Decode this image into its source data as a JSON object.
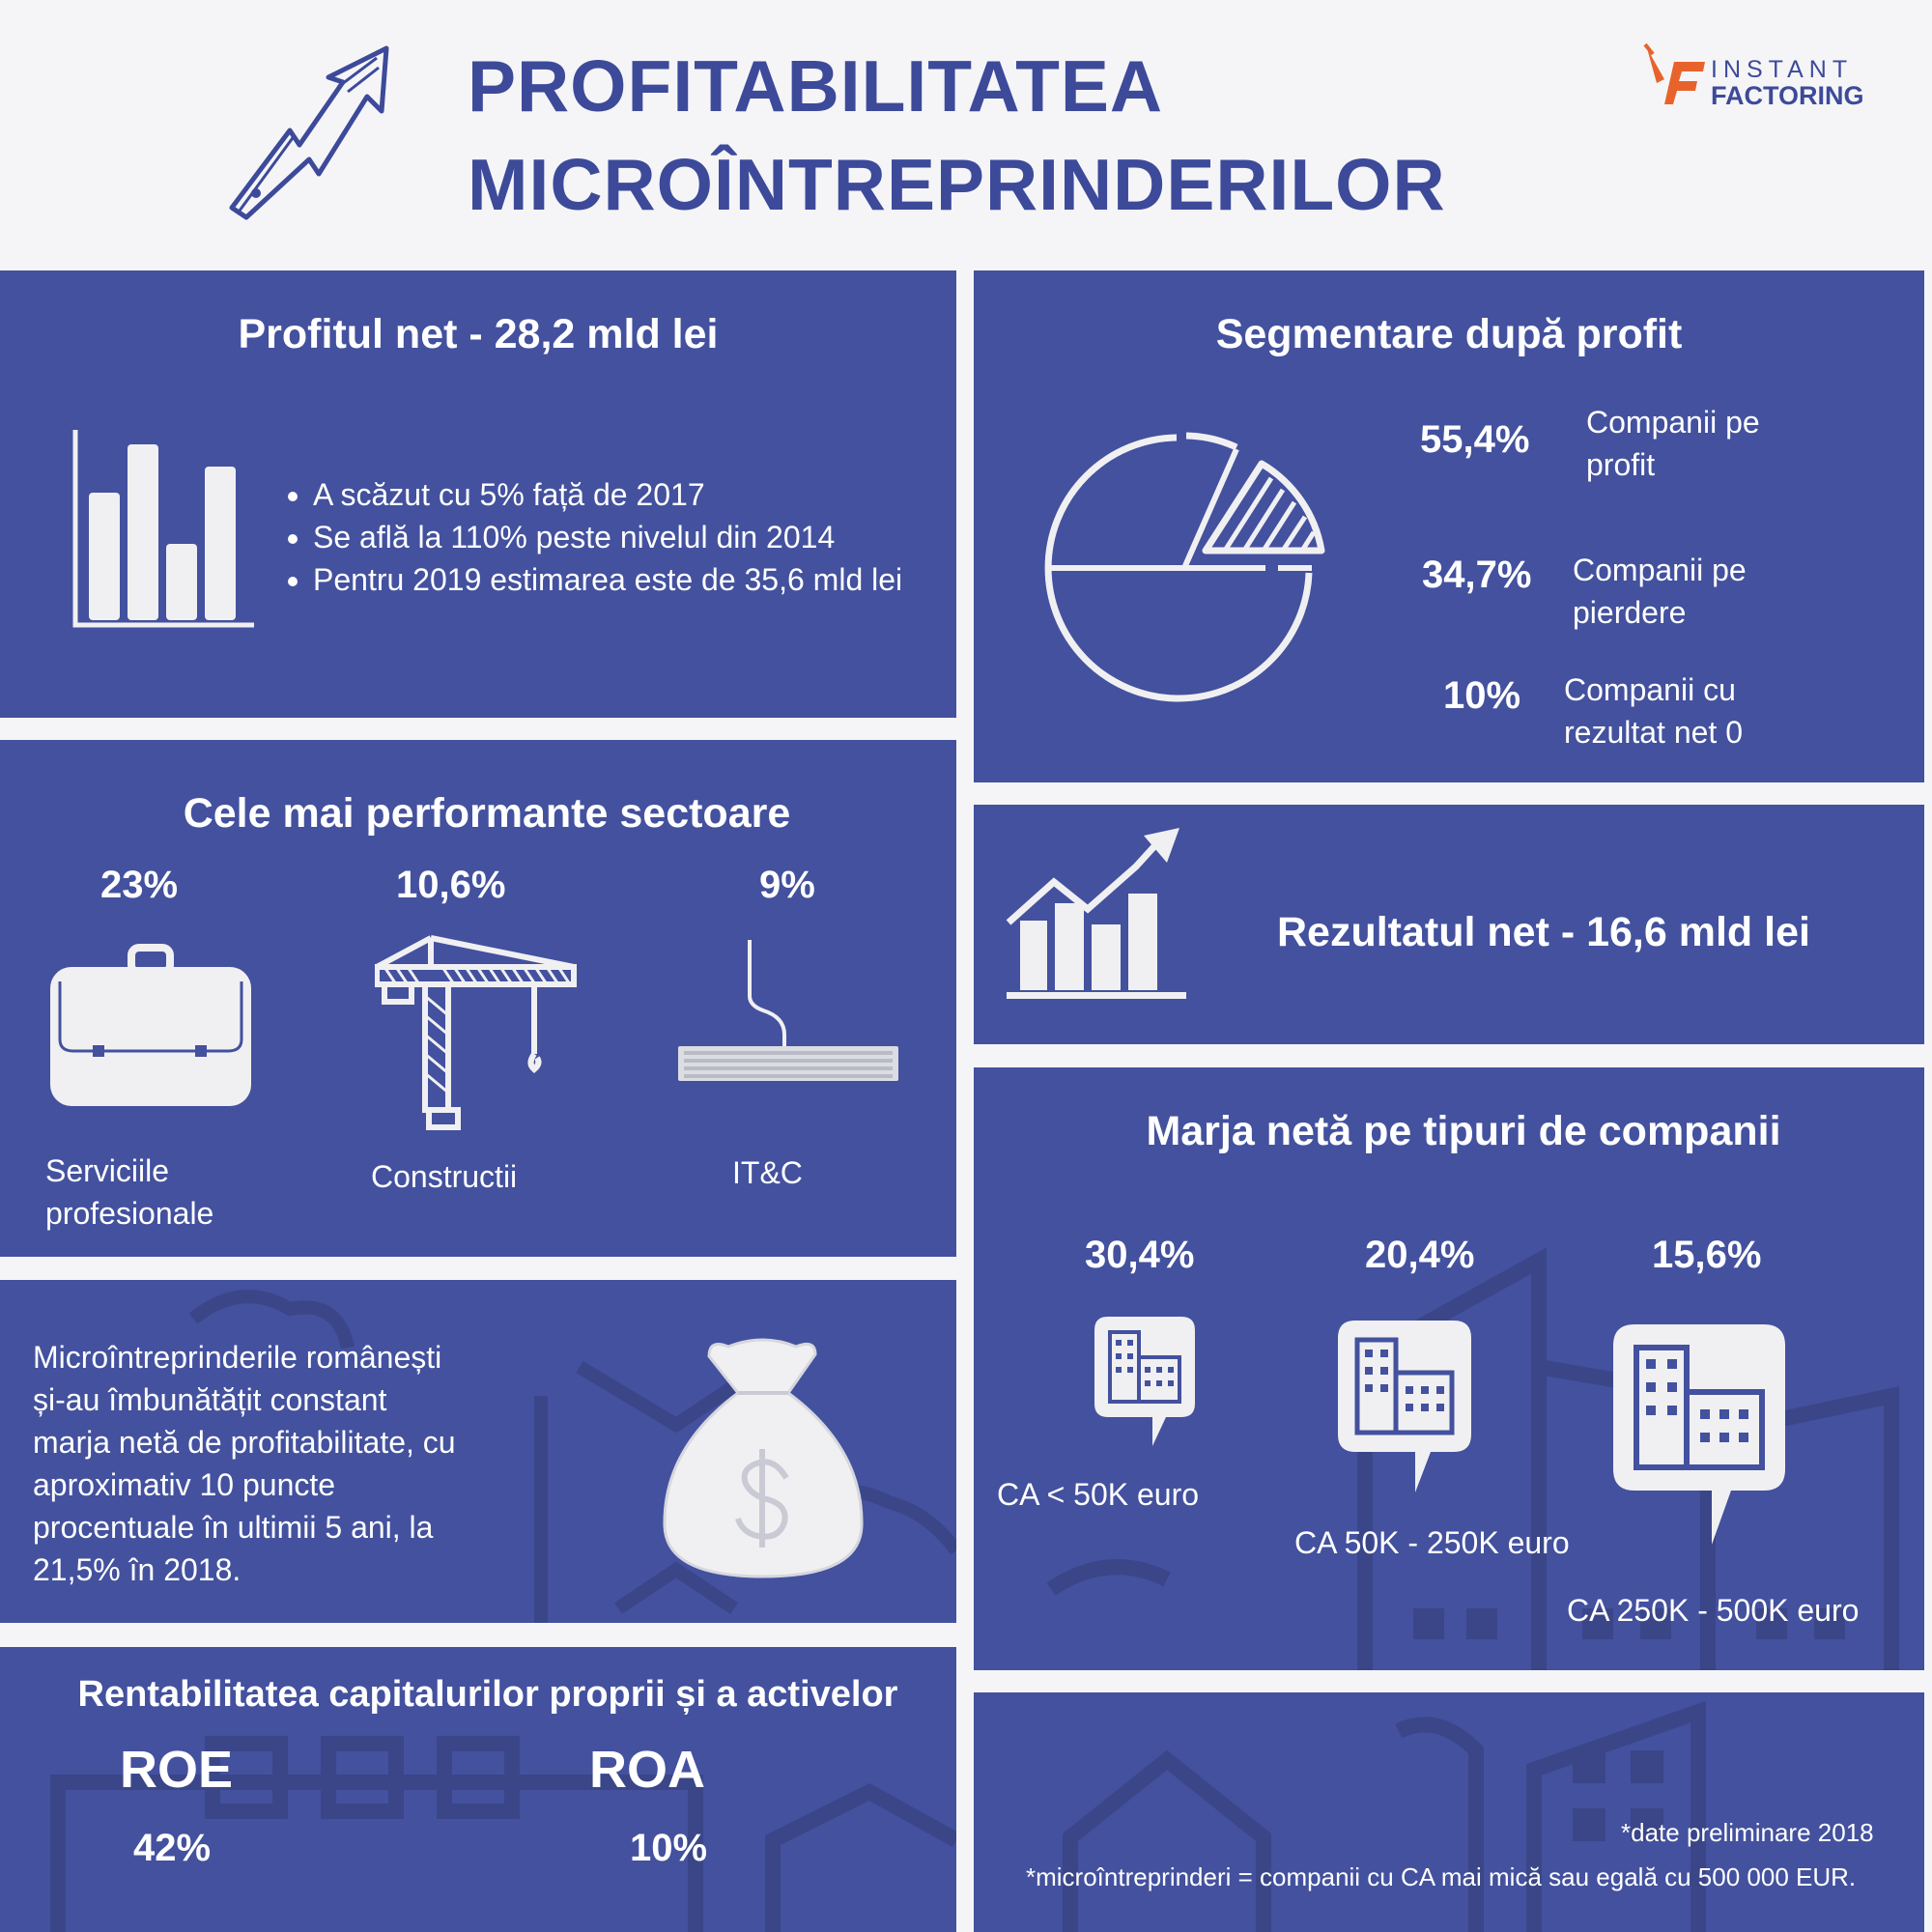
{
  "header": {
    "title_line1": "PROFITABILITATEA",
    "title_line2": "MICROÎNTREPRINDERILOR",
    "logo_top": "INSTANT",
    "logo_bottom": "FACTORING"
  },
  "profit_net": {
    "title": "Profitul net - 28,2 mld lei",
    "bullets": [
      "A scăzut cu 5% față de 2017",
      "Se află la 110% peste nivelul din 2014",
      "Pentru 2019 estimarea este de 35,6 mld lei"
    ]
  },
  "segmentare": {
    "title": "Segmentare după profit",
    "items": [
      {
        "value": "55,4%",
        "label_line1": "Companii pe",
        "label_line2": "profit"
      },
      {
        "value": "34,7%",
        "label_line1": "Companii pe",
        "label_line2": "pierdere"
      },
      {
        "value": "10%",
        "label_line1": "Companii cu",
        "label_line2": "rezultat net 0"
      }
    ]
  },
  "sectoare": {
    "title": "Cele mai performante sectoare",
    "items": [
      {
        "value": "23%",
        "label_line1": "Serviciile",
        "label_line2": "profesionale"
      },
      {
        "value": "10,6%",
        "label_line1": "Constructii",
        "label_line2": ""
      },
      {
        "value": "9%",
        "label_line1": "IT&C",
        "label_line2": ""
      }
    ]
  },
  "rezultat_net": {
    "title": "Rezultatul net - 16,6 mld lei"
  },
  "marja_text": {
    "lines": [
      "Microîntreprinderile românești",
      "și-au îmbunătățit constant",
      "marja netă de profitabilitate, cu",
      "aproximativ 10 puncte",
      "procentuale în ultimii 5 ani, la",
      "21,5% în 2018."
    ]
  },
  "marja_tipuri": {
    "title": "Marja netă pe tipuri de companii",
    "items": [
      {
        "value": "30,4%",
        "label": "CA < 50K euro"
      },
      {
        "value": "20,4%",
        "label": "CA 50K - 250K euro"
      },
      {
        "value": "15,6%",
        "label": "CA 250K - 500K euro"
      }
    ]
  },
  "rentabilitate": {
    "title": "Rentabilitatea capitalurilor proprii și a activelor",
    "roe_label": "ROE",
    "roe_value": "42%",
    "roa_label": "ROA",
    "roa_value": "10%"
  },
  "footnotes": {
    "line1": "*date preliminare 2018",
    "line2": "*microîntreprinderi = companii cu CA mai mică sau egală cu 500 000 EUR."
  },
  "colors": {
    "panel": "#43519e",
    "title": "#3d4a9a",
    "logo_orange": "#e8632b",
    "background": "#f5f5f7"
  }
}
